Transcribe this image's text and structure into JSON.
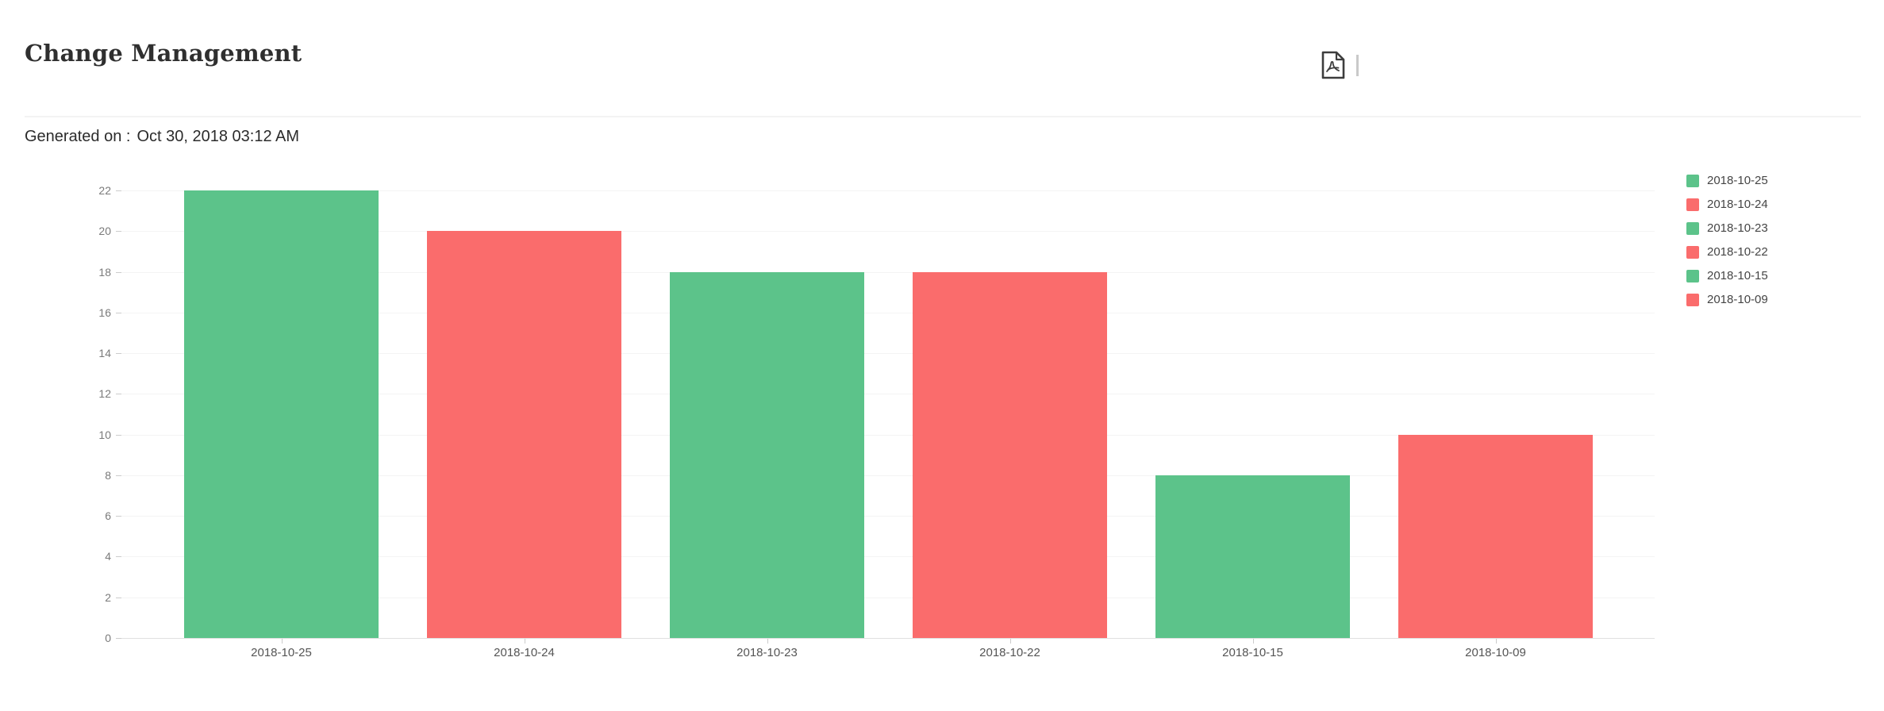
{
  "header": {
    "title": "Change Management"
  },
  "toolbar": {
    "export_pdf_icon": "pdf-export"
  },
  "meta": {
    "generated_on_label": "Generated on :",
    "generated_on_value": "Oct 30, 2018 03:12 AM"
  },
  "colors": {
    "bar_green": "#5CC38A",
    "bar_red": "#FA6C6C"
  },
  "chart_data": {
    "type": "bar",
    "title": "",
    "xlabel": "",
    "ylabel": "",
    "categories": [
      "2018-10-25",
      "2018-10-24",
      "2018-10-23",
      "2018-10-22",
      "2018-10-15",
      "2018-10-09"
    ],
    "values": [
      22,
      20,
      18,
      18,
      8,
      10
    ],
    "bar_colors": [
      "#5CC38A",
      "#FA6C6C",
      "#5CC38A",
      "#FA6C6C",
      "#5CC38A",
      "#FA6C6C"
    ],
    "ylim": [
      0,
      22
    ],
    "ytick_step": 2,
    "grid": true,
    "legend_position": "right",
    "legend": [
      {
        "label": "2018-10-25",
        "color": "#5CC38A"
      },
      {
        "label": "2018-10-24",
        "color": "#FA6C6C"
      },
      {
        "label": "2018-10-23",
        "color": "#5CC38A"
      },
      {
        "label": "2018-10-22",
        "color": "#FA6C6C"
      },
      {
        "label": "2018-10-15",
        "color": "#5CC38A"
      },
      {
        "label": "2018-10-09",
        "color": "#FA6C6C"
      }
    ]
  }
}
